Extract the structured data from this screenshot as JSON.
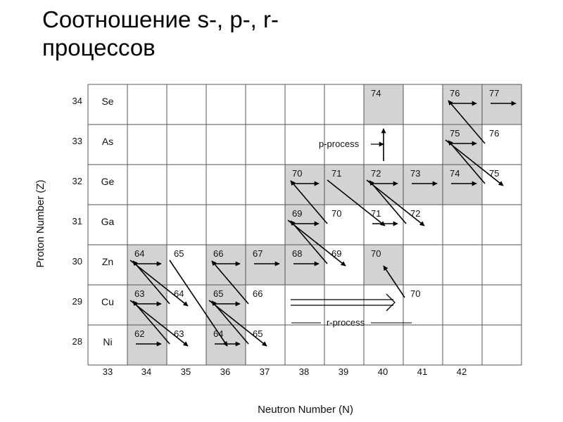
{
  "title": {
    "line1": "Соотношение s-, p-, r-",
    "line2": "процессов"
  },
  "axes": {
    "x_label": "Neutron Number (N)",
    "y_label": "Proton Number (Z)",
    "x_ticks": [
      "33",
      "34",
      "35",
      "36",
      "37",
      "38",
      "39",
      "40",
      "41",
      "42"
    ],
    "y_ticks": [
      "34",
      "33",
      "32",
      "31",
      "30",
      "29",
      "28"
    ]
  },
  "elements": [
    "Se",
    "As",
    "Ge",
    "Ga",
    "Zn",
    "Cu",
    "Ni"
  ],
  "annotations": {
    "p_process": "p-process",
    "r_process": "r-process"
  },
  "colors": {
    "shaded": "#d3d3d3",
    "grid": "#555555",
    "arrow": "#000000"
  },
  "chart_data": {
    "type": "table",
    "x_range": [
      34,
      43
    ],
    "y_range": [
      28,
      34
    ],
    "shaded": [
      {
        "N": 40,
        "Z": 34
      },
      {
        "N": 42,
        "Z": 34
      },
      {
        "N": 43,
        "Z": 34
      },
      {
        "N": 42,
        "Z": 33
      },
      {
        "N": 38,
        "Z": 32
      },
      {
        "N": 39,
        "Z": 32
      },
      {
        "N": 40,
        "Z": 32
      },
      {
        "N": 41,
        "Z": 32
      },
      {
        "N": 42,
        "Z": 32
      },
      {
        "N": 38,
        "Z": 31
      },
      {
        "N": 34,
        "Z": 30
      },
      {
        "N": 36,
        "Z": 30
      },
      {
        "N": 37,
        "Z": 30
      },
      {
        "N": 38,
        "Z": 30
      },
      {
        "N": 40,
        "Z": 30
      },
      {
        "N": 34,
        "Z": 29
      },
      {
        "N": 36,
        "Z": 29
      },
      {
        "N": 34,
        "Z": 28
      },
      {
        "N": 36,
        "Z": 28
      }
    ],
    "cell_labels": [
      {
        "N": 40,
        "Z": 34,
        "A": "74"
      },
      {
        "N": 42,
        "Z": 34,
        "A": "76"
      },
      {
        "N": 43,
        "Z": 34,
        "A": "77"
      },
      {
        "N": 42,
        "Z": 33,
        "A": "75"
      },
      {
        "N": 43,
        "Z": 33,
        "A": "76"
      },
      {
        "N": 38,
        "Z": 32,
        "A": "70"
      },
      {
        "N": 39,
        "Z": 32,
        "A": "71"
      },
      {
        "N": 40,
        "Z": 32,
        "A": "72"
      },
      {
        "N": 41,
        "Z": 32,
        "A": "73"
      },
      {
        "N": 42,
        "Z": 32,
        "A": "74"
      },
      {
        "N": 43,
        "Z": 32,
        "A": "75"
      },
      {
        "N": 38,
        "Z": 31,
        "A": "69"
      },
      {
        "N": 39,
        "Z": 31,
        "A": "70"
      },
      {
        "N": 40,
        "Z": 31,
        "A": "71"
      },
      {
        "N": 41,
        "Z": 31,
        "A": "72"
      },
      {
        "N": 34,
        "Z": 30,
        "A": "64"
      },
      {
        "N": 35,
        "Z": 30,
        "A": "65"
      },
      {
        "N": 36,
        "Z": 30,
        "A": "66"
      },
      {
        "N": 37,
        "Z": 30,
        "A": "67"
      },
      {
        "N": 38,
        "Z": 30,
        "A": "68"
      },
      {
        "N": 39,
        "Z": 30,
        "A": "69"
      },
      {
        "N": 40,
        "Z": 30,
        "A": "70"
      },
      {
        "N": 34,
        "Z": 29,
        "A": "63"
      },
      {
        "N": 35,
        "Z": 29,
        "A": "64"
      },
      {
        "N": 36,
        "Z": 29,
        "A": "65"
      },
      {
        "N": 37,
        "Z": 29,
        "A": "66"
      },
      {
        "N": 41,
        "Z": 29,
        "A": "70"
      },
      {
        "N": 34,
        "Z": 28,
        "A": "62"
      },
      {
        "N": 35,
        "Z": 28,
        "A": "63"
      },
      {
        "N": 36,
        "Z": 28,
        "A": "64"
      },
      {
        "N": 37,
        "Z": 28,
        "A": "65"
      }
    ],
    "s_process_path": [
      {
        "from": [
          34,
          28
        ],
        "to": [
          35,
          28
        ],
        "kind": "capture"
      },
      {
        "from": [
          35,
          28
        ],
        "to": [
          34,
          29
        ],
        "kind": "decay"
      },
      {
        "from": [
          34,
          29
        ],
        "to": [
          35,
          29
        ],
        "kind": "capture"
      },
      {
        "from": [
          35,
          29
        ],
        "to": [
          34,
          30
        ],
        "kind": "decay"
      },
      {
        "from": [
          34,
          30
        ],
        "to": [
          35,
          30
        ],
        "kind": "capture"
      },
      {
        "from": [
          34,
          29
        ],
        "to": [
          35,
          28
        ],
        "kind": "decay"
      },
      {
        "from": [
          34,
          30
        ],
        "to": [
          35,
          29
        ],
        "kind": "decay"
      },
      {
        "from": [
          36,
          28
        ],
        "to": [
          37,
          28
        ],
        "kind": "capture"
      },
      {
        "from": [
          37,
          28
        ],
        "to": [
          36,
          29
        ],
        "kind": "decay"
      },
      {
        "from": [
          36,
          29
        ],
        "to": [
          37,
          29
        ],
        "kind": "capture"
      },
      {
        "from": [
          37,
          29
        ],
        "to": [
          36,
          30
        ],
        "kind": "decay"
      },
      {
        "from": [
          35,
          30
        ],
        "to": [
          36,
          28
        ],
        "kind": "decay"
      },
      {
        "from": [
          36,
          29
        ],
        "to": [
          37,
          28
        ],
        "kind": "decay"
      },
      {
        "from": [
          36,
          30
        ],
        "to": [
          37,
          30
        ],
        "kind": "capture"
      },
      {
        "from": [
          37,
          30
        ],
        "to": [
          38,
          30
        ],
        "kind": "capture"
      },
      {
        "from": [
          38,
          30
        ],
        "to": [
          39,
          30
        ],
        "kind": "capture"
      },
      {
        "from": [
          39,
          30
        ],
        "to": [
          38,
          31
        ],
        "kind": "decay"
      },
      {
        "from": [
          38,
          31
        ],
        "to": [
          39,
          31
        ],
        "kind": "capture"
      },
      {
        "from": [
          39,
          31
        ],
        "to": [
          38,
          32
        ],
        "kind": "decay"
      },
      {
        "from": [
          38,
          31
        ],
        "to": [
          39,
          30
        ],
        "kind": "decay"
      },
      {
        "from": [
          38,
          32
        ],
        "to": [
          39,
          32
        ],
        "kind": "capture"
      },
      {
        "from": [
          39,
          32
        ],
        "to": [
          40,
          31
        ],
        "kind": "decay"
      },
      {
        "from": [
          40,
          31
        ],
        "to": [
          41,
          31
        ],
        "kind": "capture"
      },
      {
        "from": [
          41,
          31
        ],
        "to": [
          40,
          32
        ],
        "kind": "decay"
      },
      {
        "from": [
          40,
          32
        ],
        "to": [
          41,
          31
        ],
        "kind": "decay"
      },
      {
        "from": [
          40,
          32
        ],
        "to": [
          41,
          32
        ],
        "kind": "capture"
      },
      {
        "from": [
          41,
          32
        ],
        "to": [
          42,
          32
        ],
        "kind": "capture"
      },
      {
        "from": [
          42,
          32
        ],
        "to": [
          43,
          32
        ],
        "kind": "capture"
      },
      {
        "from": [
          43,
          32
        ],
        "to": [
          42,
          33
        ],
        "kind": "decay"
      },
      {
        "from": [
          42,
          33
        ],
        "to": [
          43,
          33
        ],
        "kind": "capture"
      },
      {
        "from": [
          43,
          33
        ],
        "to": [
          42,
          34
        ],
        "kind": "decay"
      },
      {
        "from": [
          42,
          33
        ],
        "to": [
          43,
          32
        ],
        "kind": "decay"
      },
      {
        "from": [
          42,
          34
        ],
        "to": [
          43,
          34
        ],
        "kind": "capture"
      },
      {
        "from": [
          43,
          34
        ],
        "to": [
          44,
          34
        ],
        "kind": "capture"
      }
    ],
    "p_process": {
      "from": [
        40,
        33
      ],
      "to": [
        40,
        34
      ]
    },
    "r_process": {
      "to": [
        41,
        29
      ]
    },
    "r_decay": {
      "from": [
        41,
        29
      ],
      "to": [
        40,
        30
      ]
    }
  }
}
